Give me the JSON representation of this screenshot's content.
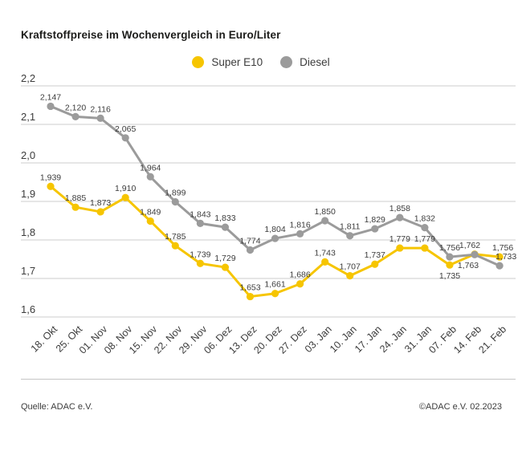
{
  "title": "Kraftstoffpreise im Wochenvergleich in Euro/Liter",
  "footer": {
    "source": "Quelle: ADAC e.V.",
    "copyright": "©ADAC e.V. 02.2023"
  },
  "colors": {
    "super_e10": "#f6c500",
    "diesel": "#9b9b9b",
    "grid": "#cccccc",
    "text": "#3c3c3c",
    "title": "#1d1d1b"
  },
  "chart_data": {
    "type": "line",
    "title": "Kraftstoffpreise im Wochenvergleich in Euro/Liter",
    "xlabel": "",
    "ylabel": "Euro/Liter",
    "ylim": [
      1.6,
      2.2
    ],
    "grid": "horizontal",
    "legend_position": "top-center",
    "decimal_separator": ",",
    "y_ticks": [
      "2,2",
      "2,1",
      "2,0",
      "1,9",
      "1,8",
      "1,7",
      "1,6"
    ],
    "categories": [
      "18. Okt",
      "25. Okt",
      "01. Nov",
      "08. Nov",
      "15. Nov",
      "22. Nov",
      "29. Nov",
      "06. Dez",
      "13. Dez",
      "20. Dez",
      "27. Dez",
      "03. Jan",
      "10. Jan",
      "17. Jan",
      "24. Jan",
      "31. Jan",
      "07. Feb",
      "14. Feb",
      "21. Feb"
    ],
    "series": [
      {
        "name": "Super E10",
        "color": "#f6c500",
        "values": [
          1.939,
          1.885,
          1.873,
          1.91,
          1.849,
          1.785,
          1.739,
          1.729,
          1.653,
          1.661,
          1.686,
          1.743,
          1.707,
          1.737,
          1.779,
          1.779,
          1.735,
          1.763,
          1.756
        ],
        "label_below": [
          16,
          17
        ]
      },
      {
        "name": "Diesel",
        "color": "#9b9b9b",
        "values": [
          2.147,
          2.12,
          2.116,
          2.065,
          1.964,
          1.899,
          1.843,
          1.833,
          1.774,
          1.804,
          1.816,
          1.85,
          1.811,
          1.829,
          1.858,
          1.832,
          1.756,
          1.762,
          1.733
        ],
        "label_below": []
      }
    ]
  }
}
